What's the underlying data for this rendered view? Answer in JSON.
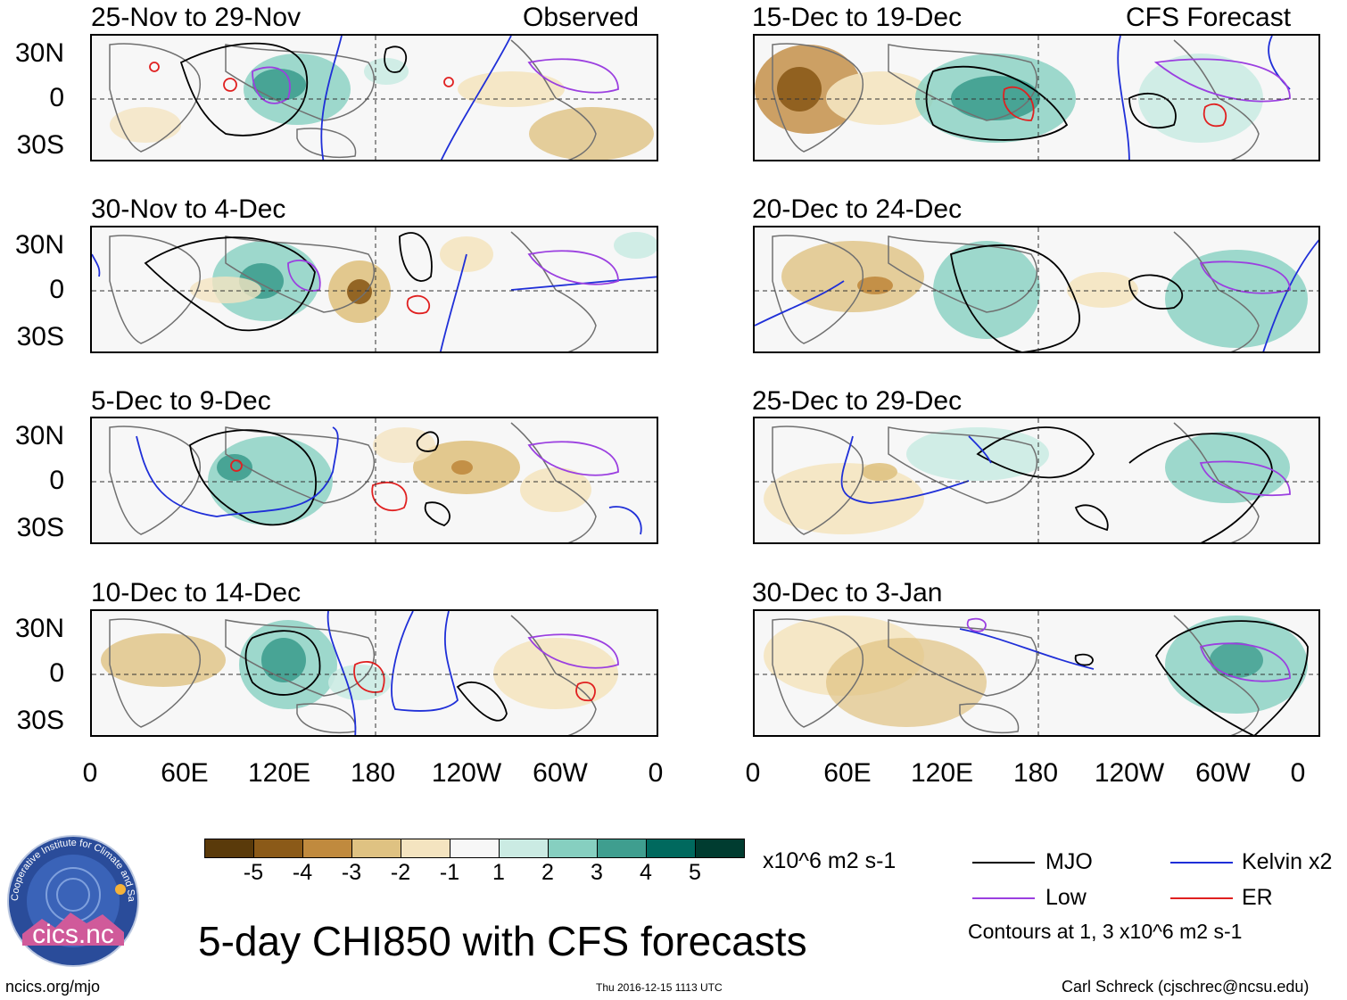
{
  "headers": {
    "observed": "Observed",
    "forecast": "CFS Forecast"
  },
  "panels_left": [
    {
      "title": "25-Nov to 29-Nov"
    },
    {
      "title": "30-Nov to 4-Dec"
    },
    {
      "title": "5-Dec to 9-Dec"
    },
    {
      "title": "10-Dec to 14-Dec"
    }
  ],
  "panels_right": [
    {
      "title": "15-Dec to 19-Dec"
    },
    {
      "title": "20-Dec to 24-Dec"
    },
    {
      "title": "25-Dec to 29-Dec"
    },
    {
      "title": "30-Dec to 3-Jan"
    }
  ],
  "lat_labels": [
    "30N",
    "0",
    "30S"
  ],
  "lon_labels": [
    "0",
    "60E",
    "120E",
    "180",
    "120W",
    "60W",
    "0"
  ],
  "colorbar": {
    "colors": [
      "#5a3a0a",
      "#8b5a18",
      "#c08a3e",
      "#dfc282",
      "#f4e4c0",
      "#f7f7f7",
      "#cbebe3",
      "#86cfc0",
      "#3f9e8f",
      "#00695e",
      "#003c30"
    ],
    "labels": [
      "-5",
      "-4",
      "-3",
      "-2",
      "-1",
      "1",
      "2",
      "3",
      "4",
      "5"
    ],
    "units": "x10^6 m2 s-1"
  },
  "legend": {
    "items": [
      {
        "label": "MJO",
        "color": "#000000"
      },
      {
        "label": "Kelvin x2",
        "color": "#1f2fd8"
      },
      {
        "label": "Low",
        "color": "#9b3fe0"
      },
      {
        "label": "ER",
        "color": "#e02020"
      }
    ],
    "note": "Contours at 1, 3 x10^6 m2 s-1"
  },
  "main_title": "5-day CHI850 with CFS forecasts",
  "logo_text": "cics.nc",
  "logo_ring_text": "Cooperative Institute for Climate and Satellites",
  "footer": {
    "url": "ncics.org/mjo",
    "timestamp": "Thu 2016-12-15 1113 UTC",
    "credit": "Carl Schreck (cjschrec@ncsu.edu)"
  }
}
